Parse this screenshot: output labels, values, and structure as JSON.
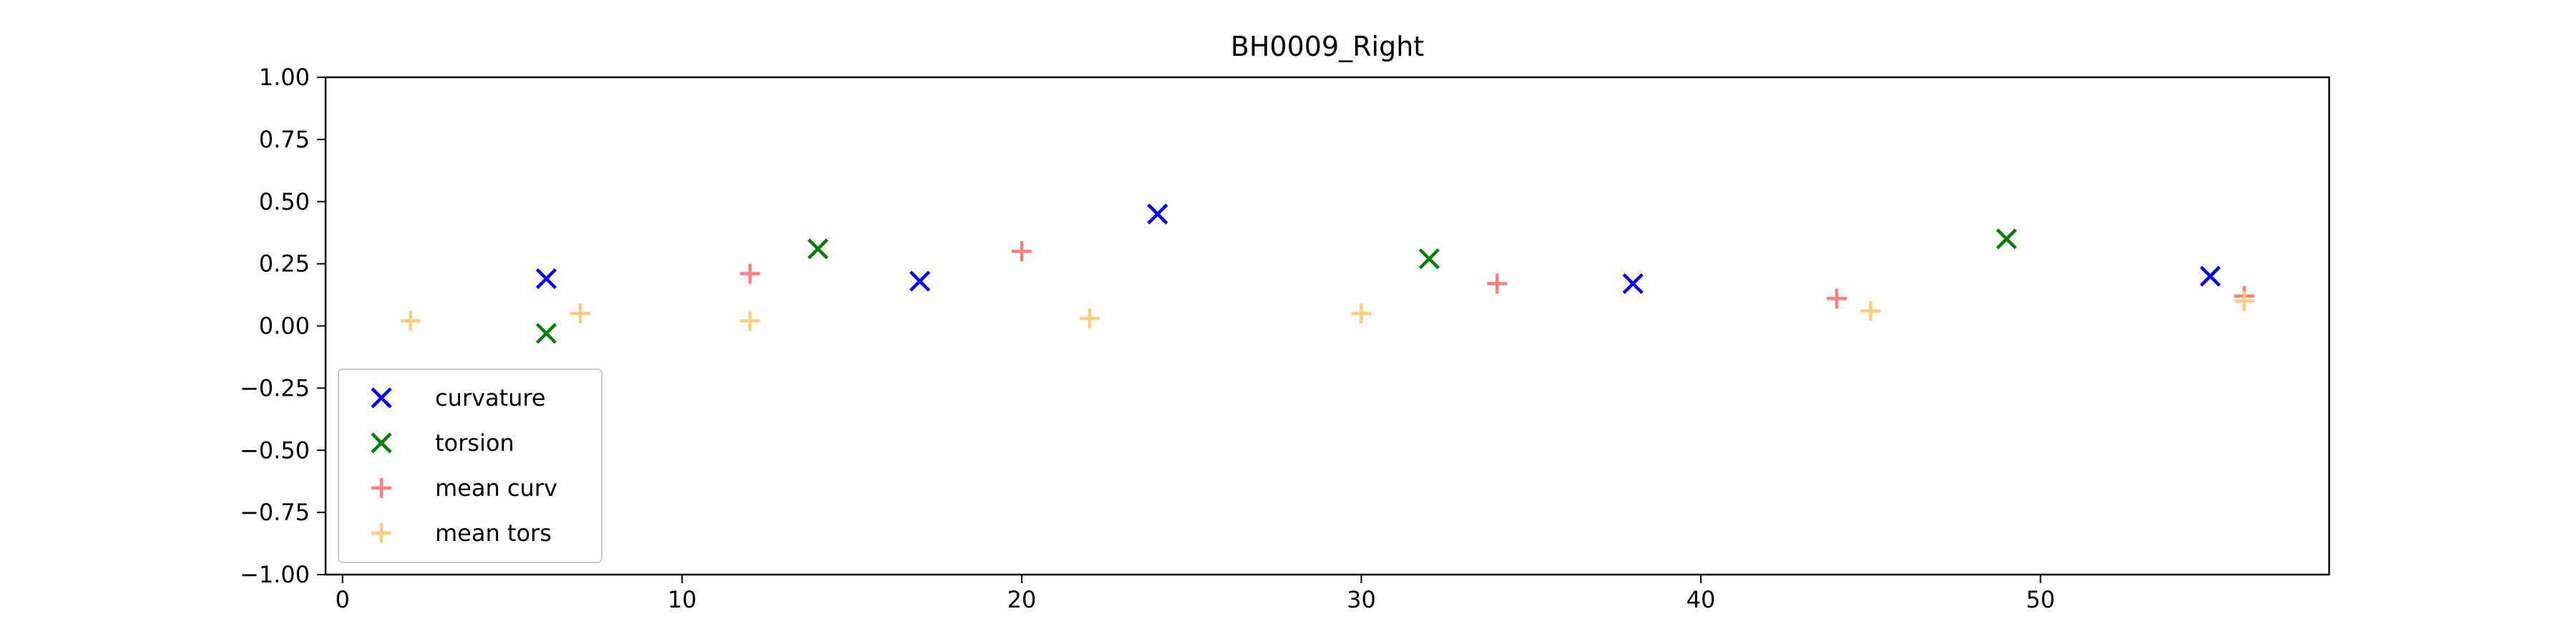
{
  "chart_data": {
    "type": "scatter",
    "title": "BH0009_Right",
    "xlabel": "",
    "ylabel": "",
    "xlim": [
      -0.5,
      58.5
    ],
    "ylim": [
      -1.0,
      1.0
    ],
    "xticks": [
      0,
      10,
      20,
      30,
      40,
      50
    ],
    "yticks": [
      1.0,
      0.75,
      0.5,
      0.25,
      0.0,
      -0.25,
      -0.5,
      -0.75,
      -1.0
    ],
    "xtick_labels": [
      "0",
      "10",
      "20",
      "30",
      "40",
      "50"
    ],
    "ytick_labels": [
      "1.00",
      "0.75",
      "0.50",
      "0.25",
      "0.00",
      "−0.25",
      "−0.50",
      "−0.75",
      "−1.00"
    ],
    "grid": false,
    "legend_position": "lower-left",
    "series": [
      {
        "name": "curvature",
        "marker": "x",
        "color": "#0000ff",
        "points": [
          [
            6,
            0.19
          ],
          [
            17,
            0.18
          ],
          [
            24,
            0.45
          ],
          [
            38,
            0.17
          ],
          [
            55,
            0.2
          ]
        ]
      },
      {
        "name": "torsion",
        "marker": "x",
        "color": "#008000",
        "points": [
          [
            6,
            -0.03
          ],
          [
            14,
            0.31
          ],
          [
            32,
            0.27
          ],
          [
            49,
            0.35
          ]
        ]
      },
      {
        "name": "mean curv",
        "marker": "+",
        "color": "#ff7f7f",
        "points": [
          [
            12,
            0.21
          ],
          [
            20,
            0.3
          ],
          [
            34,
            0.17
          ],
          [
            44,
            0.11
          ],
          [
            56,
            0.12
          ]
        ]
      },
      {
        "name": "mean tors",
        "marker": "+",
        "color": "#ffcc80",
        "points": [
          [
            2,
            0.02
          ],
          [
            7,
            0.05
          ],
          [
            12,
            0.02
          ],
          [
            22,
            0.03
          ],
          [
            30,
            0.05
          ],
          [
            45,
            0.06
          ],
          [
            56,
            0.1
          ]
        ]
      }
    ]
  }
}
